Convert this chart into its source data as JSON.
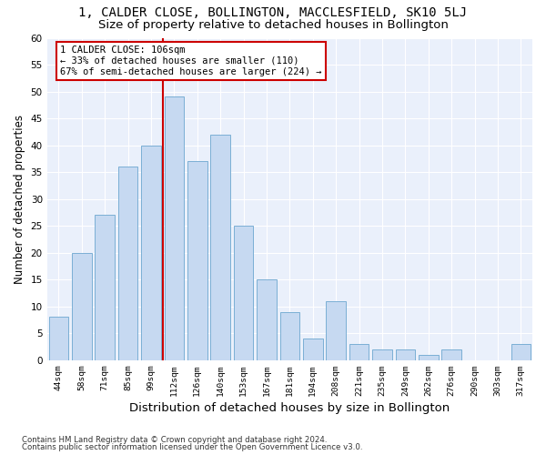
{
  "title": "1, CALDER CLOSE, BOLLINGTON, MACCLESFIELD, SK10 5LJ",
  "subtitle": "Size of property relative to detached houses in Bollington",
  "xlabel": "Distribution of detached houses by size in Bollington",
  "ylabel": "Number of detached properties",
  "categories": [
    "44sqm",
    "58sqm",
    "71sqm",
    "85sqm",
    "99sqm",
    "112sqm",
    "126sqm",
    "140sqm",
    "153sqm",
    "167sqm",
    "181sqm",
    "194sqm",
    "208sqm",
    "221sqm",
    "235sqm",
    "249sqm",
    "262sqm",
    "276sqm",
    "290sqm",
    "303sqm",
    "317sqm"
  ],
  "values": [
    8,
    20,
    27,
    36,
    40,
    49,
    37,
    42,
    25,
    15,
    9,
    4,
    11,
    3,
    2,
    2,
    1,
    2,
    0,
    0,
    3
  ],
  "bar_color": "#c6d9f1",
  "bar_edge_color": "#7bafd4",
  "vline_color": "#cc0000",
  "annotation_line1": "1 CALDER CLOSE: 106sqm",
  "annotation_line2": "← 33% of detached houses are smaller (110)",
  "annotation_line3": "67% of semi-detached houses are larger (224) →",
  "annotation_box_color": "white",
  "annotation_box_edge": "#cc0000",
  "ylim": [
    0,
    60
  ],
  "yticks": [
    0,
    5,
    10,
    15,
    20,
    25,
    30,
    35,
    40,
    45,
    50,
    55,
    60
  ],
  "bg_color": "#eaf0fb",
  "grid_color": "#ffffff",
  "footer1": "Contains HM Land Registry data © Crown copyright and database right 2024.",
  "footer2": "Contains public sector information licensed under the Open Government Licence v3.0.",
  "title_fontsize": 10,
  "subtitle_fontsize": 9.5,
  "xlabel_fontsize": 9.5,
  "ylabel_fontsize": 8.5
}
